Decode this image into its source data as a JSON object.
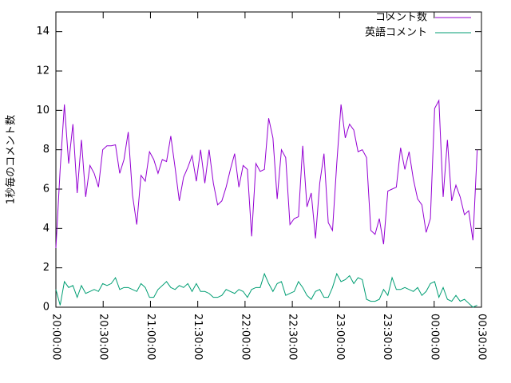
{
  "chart_data": {
    "type": "line",
    "ylabel": "1秒毎のコメント数",
    "xlim": [
      0,
      270
    ],
    "xticks": [
      {
        "value": 0,
        "label": "20:00:00"
      },
      {
        "value": 30,
        "label": "20:30:00"
      },
      {
        "value": 60,
        "label": "21:00:00"
      },
      {
        "value": 90,
        "label": "21:30:00"
      },
      {
        "value": 120,
        "label": "22:00:00"
      },
      {
        "value": 150,
        "label": "22:30:00"
      },
      {
        "value": 180,
        "label": "23:00:00"
      },
      {
        "value": 210,
        "label": "23:30:00"
      },
      {
        "value": 240,
        "label": "00:00:00"
      },
      {
        "value": 270,
        "label": "00:30:00"
      }
    ],
    "ylim": [
      0,
      15
    ],
    "yticks": [
      0,
      2,
      4,
      6,
      8,
      10,
      12,
      14
    ],
    "legend": "top-right",
    "x": [
      0,
      2.7,
      5.4,
      8.1,
      10.8,
      13.5,
      16.2,
      18.9,
      21.6,
      24.3,
      27,
      29.7,
      32.4,
      35.1,
      37.8,
      40.5,
      43.2,
      45.9,
      48.6,
      51.3,
      54,
      56.7,
      59.4,
      62.1,
      64.8,
      67.5,
      70.2,
      72.9,
      75.6,
      78.3,
      81,
      83.7,
      86.4,
      89.1,
      91.8,
      94.5,
      97.2,
      99.9,
      102.6,
      105.3,
      108,
      110.7,
      113.4,
      116.1,
      118.8,
      121.5,
      124.2,
      126.9,
      129.6,
      132.3,
      135,
      137.7,
      140.4,
      143.1,
      145.8,
      148.5,
      151.2,
      153.9,
      156.6,
      159.3,
      162,
      164.7,
      167.4,
      170.1,
      172.8,
      175.5,
      178.2,
      180.9,
      183.6,
      186.3,
      189,
      191.7,
      194.4,
      197.1,
      199.8,
      202.5,
      205.2,
      207.9,
      210.6,
      213.3,
      216,
      218.7,
      221.4,
      224.1,
      226.8,
      229.5,
      232.2,
      234.9,
      237.6,
      240.3,
      243,
      245.7,
      248.4,
      251.1,
      253.8,
      256.5,
      259.2,
      261.9,
      264.6,
      267.3
    ],
    "series": [
      {
        "name": "コメント数",
        "color": "#9400d3",
        "values": [
          3.0,
          7,
          10.3,
          7.3,
          9.3,
          5.8,
          8.5,
          5.6,
          7.2,
          6.8,
          6.1,
          8.0,
          8.2,
          8.2,
          8.25,
          6.8,
          7.5,
          8.9,
          5.7,
          4.2,
          6.7,
          6.4,
          7.9,
          7.5,
          6.8,
          7.5,
          7.4,
          8.7,
          7.1,
          5.4,
          6.6,
          7.1,
          7.7,
          6.4,
          8.0,
          6.3,
          8.0,
          6.3,
          5.2,
          5.4,
          6.1,
          7.0,
          7.8,
          6.1,
          7.2,
          7.0,
          3.6,
          7.3,
          6.9,
          7.0,
          9.6,
          8.6,
          5.5,
          8.0,
          7.6,
          4.2,
          4.5,
          4.6,
          8.2,
          5.1,
          5.8,
          3.5,
          6.3,
          7.8,
          4.3,
          3.9,
          7.3,
          10.3,
          8.6,
          9.3,
          9.0,
          7.9,
          8.0,
          7.6,
          3.9,
          3.7,
          4.5,
          3.2,
          5.9,
          6.0,
          6.1,
          8.1,
          7.0,
          7.9,
          6.5,
          5.5,
          5.2,
          3.8,
          4.5,
          10.1,
          10.5,
          5.6,
          8.5,
          5.4,
          6.2,
          5.6,
          4.7,
          4.9,
          3.4,
          8.0
        ]
      },
      {
        "name": "英語コメント",
        "color": "#009e73",
        "values": [
          0.9,
          0.1,
          1.3,
          1.0,
          1.1,
          0.5,
          1.1,
          0.7,
          0.8,
          0.9,
          0.8,
          1.2,
          1.1,
          1.2,
          1.5,
          0.9,
          1.0,
          1.0,
          0.9,
          0.8,
          1.2,
          1.0,
          0.5,
          0.5,
          0.9,
          1.1,
          1.3,
          1.0,
          0.9,
          1.1,
          1.0,
          1.2,
          0.8,
          1.2,
          0.8,
          0.8,
          0.7,
          0.5,
          0.5,
          0.6,
          0.9,
          0.8,
          0.7,
          0.9,
          0.8,
          0.5,
          0.9,
          1.0,
          1.0,
          1.7,
          1.2,
          0.8,
          1.2,
          1.3,
          0.6,
          0.7,
          0.8,
          1.3,
          1.0,
          0.6,
          0.4,
          0.8,
          0.9,
          0.5,
          0.5,
          1.0,
          1.7,
          1.3,
          1.4,
          1.6,
          1.2,
          1.5,
          1.4,
          0.4,
          0.3,
          0.3,
          0.4,
          0.9,
          0.6,
          1.5,
          0.9,
          0.9,
          1.0,
          0.9,
          0.8,
          1.0,
          0.6,
          0.8,
          1.2,
          1.3,
          0.5,
          1.0,
          0.4,
          0.3,
          0.6,
          0.3,
          0.4,
          0.2,
          0.0,
          0.1
        ]
      }
    ]
  }
}
